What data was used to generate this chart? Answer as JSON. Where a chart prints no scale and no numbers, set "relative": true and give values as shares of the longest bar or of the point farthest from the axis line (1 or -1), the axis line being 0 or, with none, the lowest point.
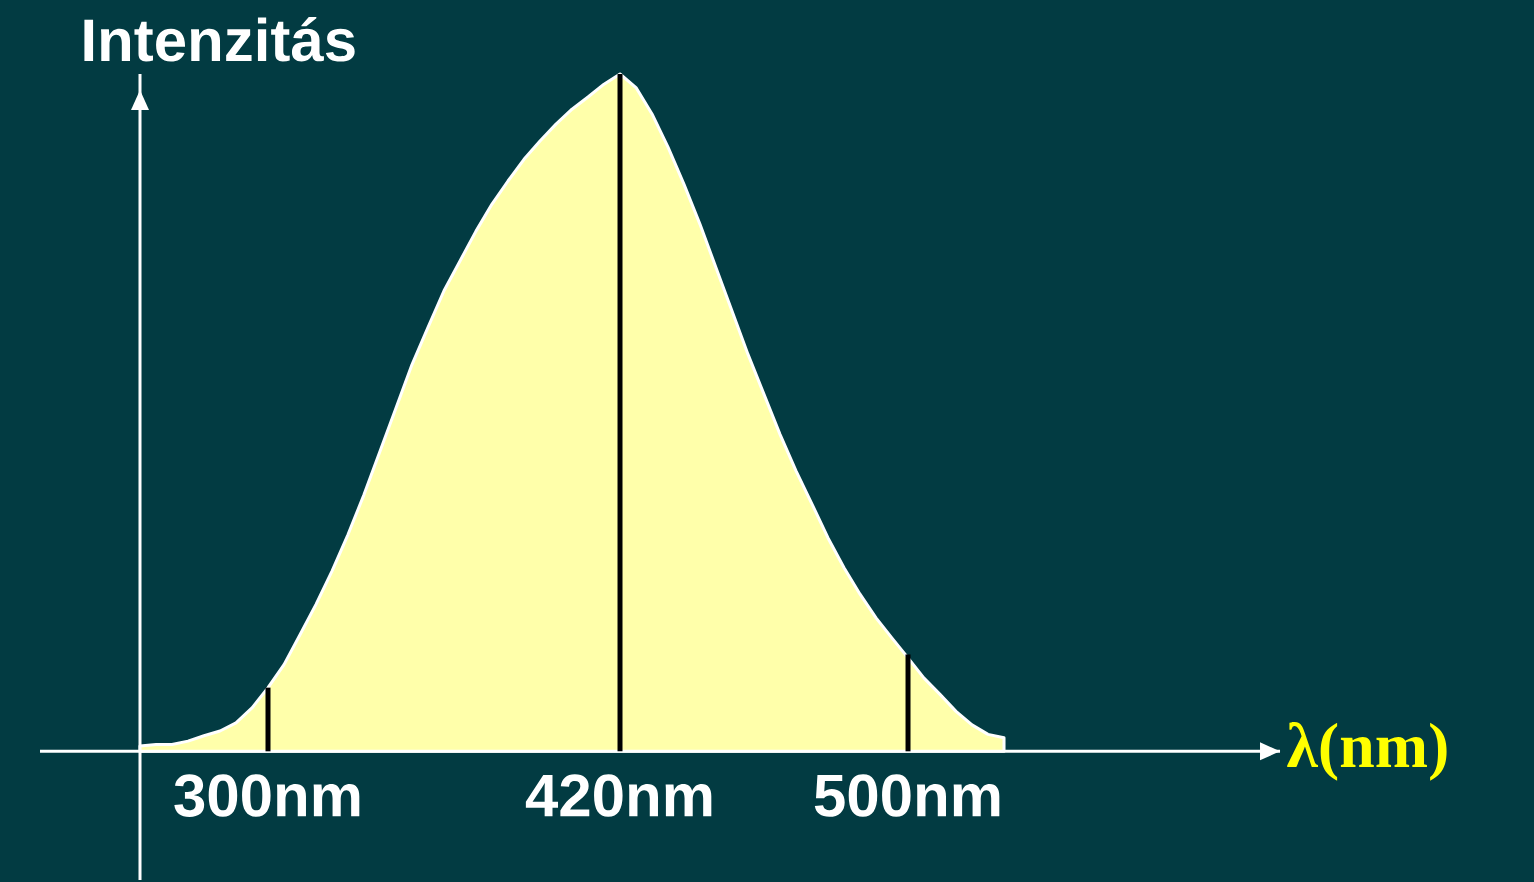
{
  "chart_data": {
    "type": "area",
    "relative": true,
    "ylabel": "Intenzitás",
    "xlabel": "λ(nm)",
    "categories": [
      null,
      null,
      null,
      null,
      null,
      null,
      null,
      null,
      "300nm",
      null,
      null,
      null,
      null,
      null,
      null,
      null,
      null,
      null,
      null,
      null,
      null,
      null,
      null,
      null,
      null,
      null,
      null,
      null,
      null,
      null,
      "420nm",
      null,
      null,
      null,
      null,
      null,
      null,
      null,
      null,
      null,
      null,
      null,
      null,
      null,
      null,
      null,
      null,
      null,
      "500nm",
      null,
      null,
      null,
      null,
      null,
      null
    ],
    "series": [
      {
        "color": "#ffffaa",
        "values": [
          0.008,
          0.01,
          0.01,
          0.015,
          0.023,
          0.03,
          0.042,
          0.064,
          0.094,
          0.128,
          0.172,
          0.217,
          0.266,
          0.32,
          0.379,
          0.443,
          0.507,
          0.571,
          0.626,
          0.68,
          0.724,
          0.768,
          0.808,
          0.842,
          0.874,
          0.901,
          0.926,
          0.948,
          0.966,
          0.985,
          1.0,
          0.98,
          0.941,
          0.892,
          0.837,
          0.778,
          0.714,
          0.65,
          0.586,
          0.527,
          0.468,
          0.414,
          0.365,
          0.315,
          0.271,
          0.232,
          0.197,
          0.167,
          0.138,
          0.108,
          0.084,
          0.059,
          0.039,
          0.025,
          0.02
        ]
      },
      {
        "type": "bar",
        "color": "#000000",
        "values": [
          null,
          null,
          null,
          null,
          null,
          null,
          null,
          null,
          0.094,
          null,
          null,
          null,
          null,
          null,
          null,
          null,
          null,
          null,
          null,
          null,
          null,
          null,
          null,
          null,
          null,
          null,
          null,
          null,
          null,
          null,
          1.0,
          null,
          null,
          null,
          null,
          null,
          null,
          null,
          null,
          null,
          null,
          null,
          null,
          null,
          null,
          null,
          null,
          null,
          0.143,
          null,
          null,
          null,
          null,
          null,
          null
        ]
      }
    ]
  }
}
